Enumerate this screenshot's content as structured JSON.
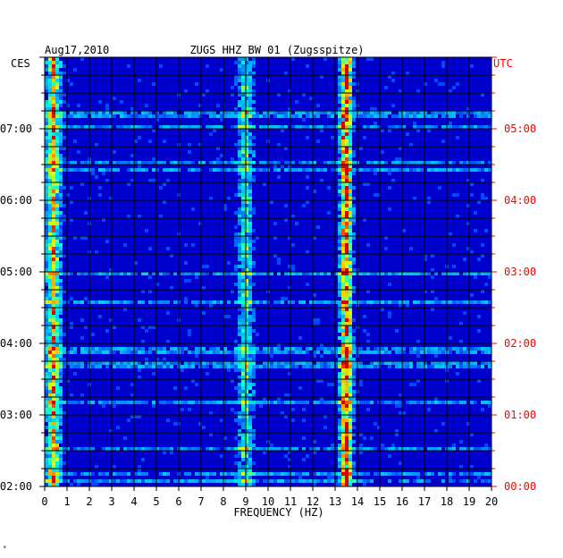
{
  "chart_data": {
    "type": "heatmap",
    "title": "ZUGS HHZ BW 01 (Zugsspitze)",
    "date": "Aug17,2010",
    "left_axis_label": "CES",
    "right_axis_label": "UTC",
    "xlabel": "FREQUENCY (HZ)",
    "xlim": [
      0,
      20
    ],
    "x_ticks": [
      "0",
      "1",
      "2",
      "3",
      "4",
      "5",
      "6",
      "7",
      "8",
      "9",
      "10",
      "11",
      "12",
      "13",
      "14",
      "15",
      "16",
      "17",
      "18",
      "19",
      "20"
    ],
    "left_time_ticks": [
      "02:00",
      "03:00",
      "04:00",
      "05:00",
      "06:00",
      "07:00"
    ],
    "right_time_ticks": [
      "00:00",
      "01:00",
      "02:00",
      "03:00",
      "04:00",
      "05:00"
    ],
    "time_range_local_hours": [
      2.0,
      8.0
    ],
    "grid": true,
    "colors": {
      "background": "#0000cc",
      "grid": "#000000",
      "utc_label": "#ff0000",
      "text": "#000000"
    },
    "energy_bands_hz": [
      {
        "center": 0.4,
        "width": 0.5,
        "level": "high"
      },
      {
        "center": 9.0,
        "width": 0.5,
        "level": "medium"
      },
      {
        "center": 13.5,
        "width": 0.4,
        "level": "very high"
      }
    ]
  },
  "footer_mark": "*"
}
